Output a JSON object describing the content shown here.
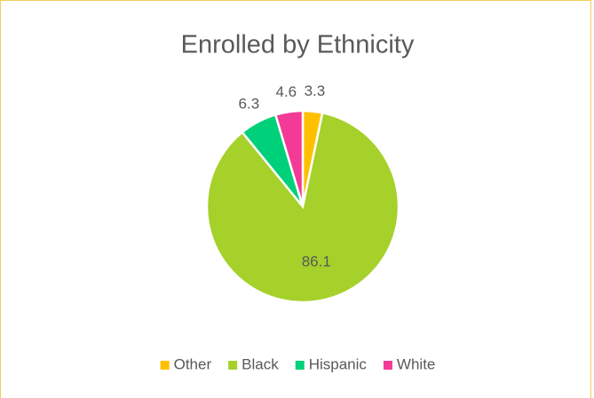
{
  "chart_data": {
    "type": "pie",
    "title": "Enrolled by Ethnicity",
    "categories": [
      "Other",
      "Black",
      "Hispanic",
      "White"
    ],
    "values": [
      3.3,
      86.1,
      6.3,
      4.6
    ],
    "colors": [
      "#ffc000",
      "#a5d12a",
      "#00d07a",
      "#f23a96"
    ],
    "legend": "bottom"
  }
}
